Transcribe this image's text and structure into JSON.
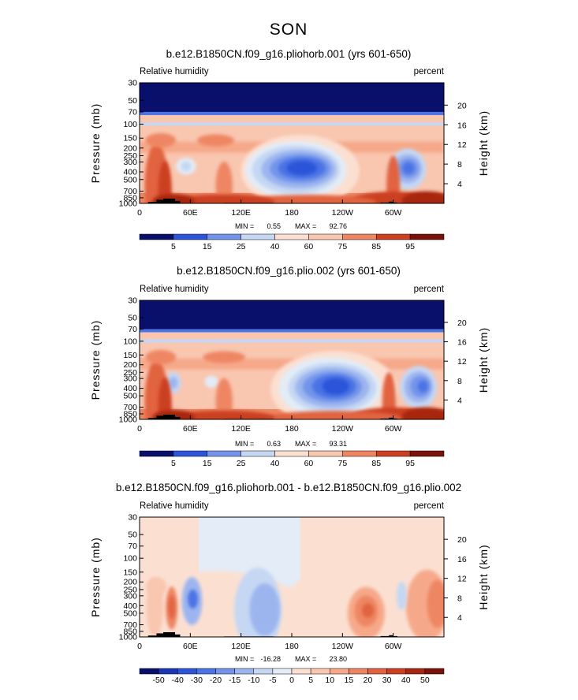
{
  "figure_title": "SON",
  "colors": {
    "absolute_scale": [
      "#08106b",
      "#1a35b5",
      "#2c55d9",
      "#4b73e5",
      "#7394ea",
      "#9db5ef",
      "#c5d7f3",
      "#e3ecf7",
      "#fbe0d2",
      "#f9c6b0",
      "#f6a98a",
      "#ee8663",
      "#e1633f",
      "#cc3f20",
      "#a72611",
      "#7a110a"
    ],
    "difference_scale": [
      "#08106b",
      "#1a35b5",
      "#2c55d9",
      "#4b73e5",
      "#7394ea",
      "#9db5ef",
      "#c5d7f3",
      "#e3ecf7",
      "#fbe0d2",
      "#f9c6b0",
      "#f6a98a",
      "#ee8663",
      "#e1633f",
      "#cc3f20",
      "#a72611",
      "#7a110a"
    ],
    "topography": "#000000"
  },
  "chart_data": [
    {
      "type": "heatmap",
      "title": "b.e12.B1850CN.f09_g16.pliohorb.001 (yrs 601-650)",
      "left_label": "Relative humidity",
      "right_label": "percent",
      "ylabel": "Pressure (mb)",
      "ylabel_right": "Height (km)",
      "x_ticks": [
        "0",
        "60E",
        "120E",
        "180",
        "120W",
        "60W"
      ],
      "y_ticks": [
        "30",
        "50",
        "70",
        "100",
        "150",
        "200",
        "250",
        "300",
        "400",
        "500",
        "700",
        "850",
        "1000"
      ],
      "right_ticks": [
        "20",
        "16",
        "12",
        "8",
        "4"
      ],
      "stats": {
        "min_label": "MIN =",
        "min": "0.55",
        "max_label": "MAX =",
        "max": "92.76"
      },
      "colorbar_labels": [
        "5",
        "15",
        "25",
        "40",
        "60",
        "75",
        "85",
        "95"
      ],
      "xlim": [
        0,
        360
      ],
      "ylim": [
        1000,
        30
      ]
    },
    {
      "type": "heatmap",
      "title": "b.e12.B1850CN.f09_g16.plio.002 (yrs 601-650)",
      "left_label": "Relative humidity",
      "right_label": "percent",
      "ylabel": "Pressure (mb)",
      "ylabel_right": "Height (km)",
      "x_ticks": [
        "0",
        "60E",
        "120E",
        "180",
        "120W",
        "60W"
      ],
      "y_ticks": [
        "30",
        "50",
        "70",
        "100",
        "150",
        "200",
        "250",
        "300",
        "400",
        "500",
        "700",
        "850",
        "1000"
      ],
      "right_ticks": [
        "20",
        "16",
        "12",
        "8",
        "4"
      ],
      "stats": {
        "min_label": "MIN =",
        "min": "0.63",
        "max_label": "MAX =",
        "max": "93.31"
      },
      "colorbar_labels": [
        "5",
        "15",
        "25",
        "40",
        "60",
        "75",
        "85",
        "95"
      ],
      "xlim": [
        0,
        360
      ],
      "ylim": [
        1000,
        30
      ]
    },
    {
      "type": "heatmap",
      "title": "b.e12.B1850CN.f09_g16.pliohorb.001 - b.e12.B1850CN.f09_g16.plio.002",
      "left_label": "Relative humidity",
      "right_label": "percent",
      "ylabel": "Pressure (mb)",
      "ylabel_right": "Height (km)",
      "x_ticks": [
        "0",
        "60E",
        "120E",
        "180",
        "120W",
        "60W"
      ],
      "y_ticks": [
        "30",
        "50",
        "70",
        "100",
        "150",
        "200",
        "250",
        "300",
        "400",
        "500",
        "700",
        "850",
        "1000"
      ],
      "right_ticks": [
        "20",
        "16",
        "12",
        "8",
        "4"
      ],
      "stats": {
        "min_label": "MIN =",
        "min": "-16.28",
        "max_label": "MAX =",
        "max": "23.80"
      },
      "colorbar_labels": [
        "-50",
        "-40",
        "-30",
        "-20",
        "-15",
        "-10",
        "-5",
        "0",
        "5",
        "10",
        "15",
        "20",
        "30",
        "40",
        "50"
      ],
      "xlim": [
        0,
        360
      ],
      "ylim": [
        1000,
        30
      ]
    }
  ]
}
